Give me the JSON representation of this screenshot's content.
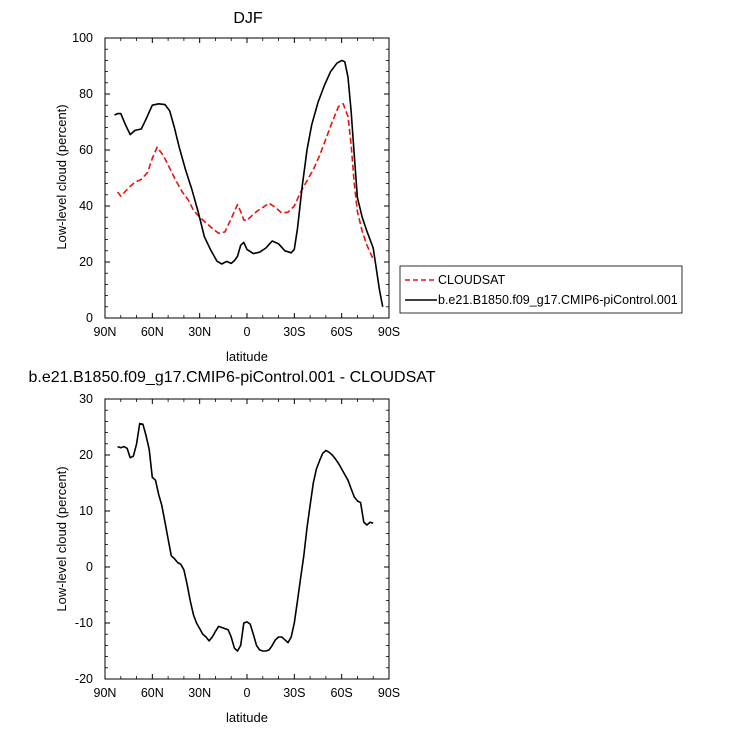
{
  "colors": {
    "background": "#ffffff",
    "model_line": "#000000",
    "obs_line": "#e8140c",
    "axis": "#000000"
  },
  "chart_data": [
    {
      "type": "line",
      "title": "DJF",
      "xlabel": "latitude",
      "ylabel": "Low-level cloud (percent)",
      "xlim": [
        90,
        -90
      ],
      "ylim": [
        0,
        100
      ],
      "xticks": [
        90,
        60,
        30,
        0,
        -30,
        -60,
        -90
      ],
      "xtick_labels": [
        "90N",
        "60N",
        "30N",
        "0",
        "30S",
        "60S",
        "90S"
      ],
      "yticks": [
        0,
        20,
        40,
        60,
        80,
        100
      ],
      "ytick_labels": [
        "0",
        "20",
        "40",
        "60",
        "80",
        "100"
      ],
      "legend": {
        "placement": "right-outside",
        "items": [
          {
            "label": "CLOUDSAT",
            "series": "CLOUDSAT"
          },
          {
            "label": "b.e21.B1850.f09_g17.CMIP6-piControl.001",
            "series": "b.e21.B1850.f09_g17.CMIP6-piControl.001"
          }
        ]
      },
      "series": [
        {
          "name": "CLOUDSAT",
          "style": "dashed",
          "color": "#e8140c",
          "x": [
            82,
            80,
            75,
            71,
            67,
            63,
            60,
            57,
            53,
            49,
            45,
            41,
            37,
            34,
            30,
            26,
            22,
            18,
            14,
            10,
            6,
            4,
            2,
            0,
            -2,
            -6,
            -10,
            -14,
            -18,
            -22,
            -26,
            -30,
            -34,
            -38,
            -42,
            -46,
            -50,
            -54,
            -58,
            -61,
            -64,
            -66,
            -68,
            -70,
            -73,
            -76,
            -80
          ],
          "y": [
            45,
            43.5,
            46.5,
            48.5,
            49.5,
            52,
            57,
            61,
            58,
            53.5,
            49,
            45,
            42,
            38.5,
            36,
            34,
            32,
            30.3,
            30.7,
            35.5,
            40.5,
            38,
            35,
            34.8,
            36,
            38,
            39.5,
            41,
            39.5,
            37.5,
            37.8,
            40,
            45,
            49,
            53,
            58,
            64,
            70,
            75.5,
            76.5,
            72,
            62,
            48,
            38,
            31,
            26,
            21
          ]
        },
        {
          "name": "b.e21.B1850.f09_g17.CMIP6-piControl.001",
          "style": "solid",
          "color": "#000000",
          "x": [
            84,
            82,
            80,
            77,
            74,
            71,
            67,
            64,
            60,
            56,
            52,
            49,
            46,
            43,
            39,
            35,
            31,
            27,
            23,
            19,
            16,
            13,
            10,
            8,
            6,
            4,
            2,
            0,
            -4,
            -8,
            -12,
            -16,
            -20,
            -24,
            -28,
            -30,
            -32,
            -35,
            -38,
            -41,
            -45,
            -49,
            -53,
            -57,
            -60,
            -62,
            -64,
            -66,
            -68,
            -70,
            -73,
            -76,
            -80,
            -84,
            -86
          ],
          "y": [
            72.5,
            73,
            73,
            69,
            65.5,
            67,
            67.5,
            71,
            76,
            76.5,
            76.2,
            74,
            68,
            61,
            53,
            46,
            38,
            29,
            24.3,
            20.3,
            19.3,
            20.2,
            19.5,
            20.5,
            22,
            26,
            27,
            24.5,
            23,
            23.5,
            25,
            27.5,
            26.5,
            24,
            23.3,
            24.5,
            32,
            47,
            60,
            69,
            77,
            83,
            88,
            91,
            92,
            91.5,
            86,
            74,
            58,
            43,
            36,
            31,
            25,
            10,
            4
          ]
        }
      ]
    },
    {
      "type": "line",
      "title": "b.e21.B1850.f09_g17.CMIP6-piControl.001 - CLOUDSAT",
      "xlabel": "latitude",
      "ylabel": "Low-level cloud (percent)",
      "xlim": [
        90,
        -90
      ],
      "ylim": [
        -20,
        30
      ],
      "xticks": [
        90,
        60,
        30,
        0,
        -30,
        -60,
        -90
      ],
      "xtick_labels": [
        "90N",
        "60N",
        "30N",
        "0",
        "30S",
        "60S",
        "90S"
      ],
      "yticks": [
        -20,
        -10,
        0,
        10,
        20,
        30
      ],
      "ytick_labels": [
        "-20",
        "-10",
        "0",
        "10",
        "20",
        "30"
      ],
      "series": [
        {
          "name": "",
          "style": "solid",
          "color": "#000000",
          "x": [
            82,
            80,
            78,
            76,
            74,
            72,
            70,
            68,
            66,
            64,
            62,
            60,
            58,
            56,
            54,
            52,
            50,
            48,
            46,
            44,
            42,
            40,
            38,
            36,
            34,
            32,
            30,
            28,
            26,
            24,
            22,
            20,
            18,
            16,
            14,
            12,
            10,
            8,
            6,
            4,
            2,
            0,
            -2,
            -4,
            -6,
            -8,
            -10,
            -12,
            -14,
            -16,
            -18,
            -20,
            -22,
            -24,
            -26,
            -28,
            -30,
            -32,
            -34,
            -36,
            -38,
            -40,
            -42,
            -44,
            -46,
            -48,
            -50,
            -52,
            -54,
            -56,
            -58,
            -60,
            -62,
            -64,
            -66,
            -68,
            -70,
            -72,
            -74,
            -76,
            -78,
            -80
          ],
          "y": [
            21.5,
            21.3,
            21.5,
            21.2,
            19.5,
            19.8,
            22,
            25.6,
            25.5,
            23.5,
            21,
            16,
            15.5,
            13,
            11,
            8,
            5,
            2,
            1.5,
            0.8,
            0.5,
            -0.5,
            -3,
            -6,
            -8.5,
            -10,
            -11,
            -12,
            -12.5,
            -13.2,
            -12.5,
            -11.5,
            -10.6,
            -10.8,
            -11,
            -11.2,
            -12.5,
            -14.5,
            -15,
            -14,
            -10,
            -9.8,
            -10.2,
            -12,
            -14,
            -14.8,
            -15,
            -15,
            -14.8,
            -14,
            -13,
            -12.5,
            -12.5,
            -13,
            -13.5,
            -12.5,
            -10,
            -6,
            -2,
            2,
            7,
            11,
            15,
            17.5,
            19,
            20.3,
            20.8,
            20.5,
            20,
            19.3,
            18.5,
            17.5,
            16.5,
            15.5,
            14,
            12.5,
            11.8,
            11.5,
            8,
            7.5,
            8,
            7.8
          ]
        }
      ]
    }
  ]
}
